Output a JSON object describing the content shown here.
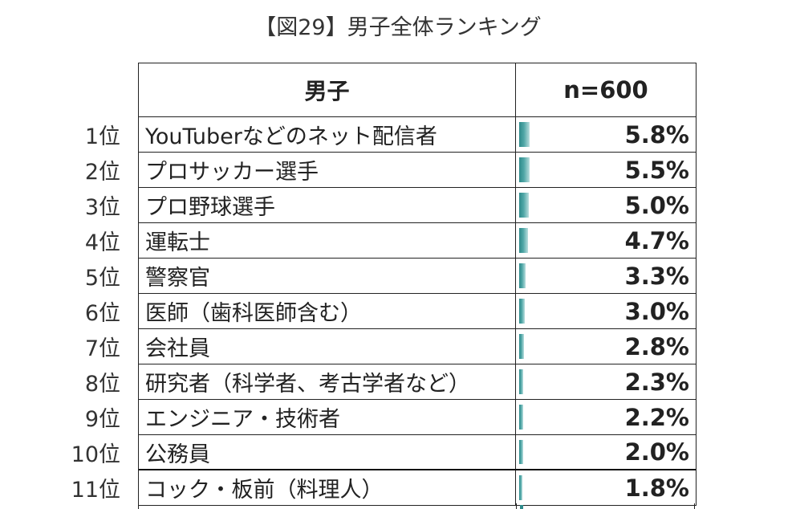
{
  "title": "【図29】男子全体ランキング",
  "header": {
    "category": "男子",
    "sample": "n=600"
  },
  "chart_data": {
    "type": "bar",
    "title": "【図29】男子全体ランキング",
    "unit": "%",
    "xlim": [
      0,
      100
    ],
    "categories": [
      "YouTuberなどのネット配信者",
      "プロサッカー選手",
      "プロ野球選手",
      "運転士",
      "警察官",
      "医師（歯科医師含む）",
      "会社員",
      "研究者（科学者、考古学者など）",
      "エンジニア・技術者",
      "公務員",
      "コック・板前（料理人）"
    ],
    "ranks": [
      "1位",
      "2位",
      "3位",
      "4位",
      "5位",
      "6位",
      "7位",
      "8位",
      "9位",
      "10位",
      "11位"
    ],
    "values": [
      5.8,
      5.5,
      5.0,
      4.7,
      3.3,
      3.0,
      2.8,
      2.3,
      2.2,
      2.0,
      1.8
    ],
    "labels": [
      "5.8%",
      "5.5%",
      "5.0%",
      "4.7%",
      "3.3%",
      "3.0%",
      "2.8%",
      "2.3%",
      "2.2%",
      "2.0%",
      "1.8%"
    ]
  },
  "colors": {
    "bar": "#2e8b8b",
    "grid": "#222222"
  }
}
